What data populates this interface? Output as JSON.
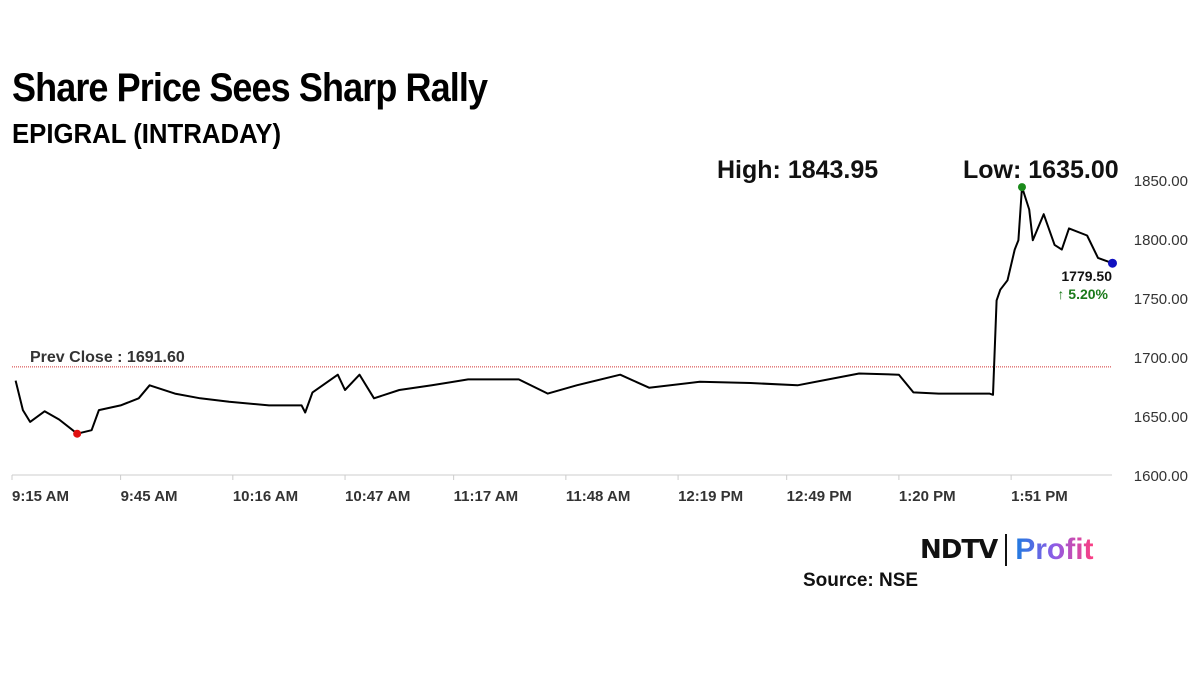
{
  "header": {
    "title": "Share Price Sees Sharp Rally",
    "subtitle": "EPIGRAL (INTRADAY)",
    "high_label": "High: 1843.95",
    "low_label": "Low: 1635.00"
  },
  "footer": {
    "source": "Source: NSE",
    "logo_left": "NDTV",
    "logo_right": "Profit"
  },
  "chart_data": {
    "type": "line",
    "title": "Share Price Sees Sharp Rally",
    "subtitle": "EPIGRAL (INTRADAY)",
    "ylim": [
      1600,
      1850
    ],
    "yticks": [
      "1600.00",
      "1650.00",
      "1700.00",
      "1750.00",
      "1800.00",
      "1850.00"
    ],
    "xticks": [
      "9:15 AM",
      "9:45 AM",
      "10:16 AM",
      "10:47 AM",
      "11:17 AM",
      "11:48 AM",
      "12:19 PM",
      "12:49 PM",
      "1:20 PM",
      "1:51 PM"
    ],
    "xtick_times": [
      "9:15",
      "9:45",
      "10:16",
      "10:47",
      "11:17",
      "11:48",
      "12:19",
      "12:49",
      "13:20",
      "13:51"
    ],
    "prev_close": 1691.6,
    "prev_close_label": "Prev Close : 1691.60",
    "last_price": "1779.50",
    "change_label": "↑ 5.20%",
    "colors": {
      "line": "#000000",
      "prev_close": "#d33333",
      "high_marker": "#1a8a1a",
      "low_marker": "#e01010",
      "last_marker": "#1010c0",
      "change": "#1a7a1a"
    },
    "series": [
      {
        "points": [
          [
            "9:16",
            1680
          ],
          [
            "9:18",
            1655
          ],
          [
            "9:20",
            1645
          ],
          [
            "9:24",
            1654
          ],
          [
            "9:28",
            1647
          ],
          [
            "9:33",
            1635
          ],
          [
            "9:37",
            1638
          ],
          [
            "9:39",
            1655
          ],
          [
            "9:45",
            1659
          ],
          [
            "9:50",
            1665
          ],
          [
            "9:53",
            1676
          ],
          [
            "10:00",
            1669
          ],
          [
            "10:07",
            1665
          ],
          [
            "10:15",
            1662
          ],
          [
            "10:26",
            1659
          ],
          [
            "10:35",
            1659
          ],
          [
            "10:36",
            1653
          ],
          [
            "10:38",
            1670
          ],
          [
            "10:45",
            1685
          ],
          [
            "10:47",
            1672
          ],
          [
            "10:51",
            1685
          ],
          [
            "10:55",
            1665
          ],
          [
            "11:02",
            1672
          ],
          [
            "11:11",
            1676
          ],
          [
            "11:21",
            1681
          ],
          [
            "11:35",
            1681
          ],
          [
            "11:43",
            1669
          ],
          [
            "11:51",
            1676
          ],
          [
            "12:03",
            1685
          ],
          [
            "12:11",
            1674
          ],
          [
            "12:25",
            1679
          ],
          [
            "12:39",
            1678
          ],
          [
            "12:52",
            1676
          ],
          [
            "13:09",
            1686
          ],
          [
            "13:20",
            1685
          ],
          [
            "13:24",
            1670
          ],
          [
            "13:31",
            1669
          ],
          [
            "13:45",
            1669
          ],
          [
            "13:46",
            1668
          ],
          [
            "13:47",
            1748
          ],
          [
            "13:48",
            1757
          ],
          [
            "13:50",
            1765
          ],
          [
            "13:52",
            1791
          ],
          [
            "13:53",
            1799
          ],
          [
            "13:54",
            1843.95
          ],
          [
            "13:56",
            1825
          ],
          [
            "13:57",
            1799
          ],
          [
            "14:00",
            1821
          ],
          [
            "14:03",
            1795
          ],
          [
            "14:05",
            1791
          ],
          [
            "14:07",
            1809
          ],
          [
            "14:12",
            1803
          ],
          [
            "14:15",
            1784
          ],
          [
            "14:19",
            1779.5
          ]
        ]
      }
    ],
    "high": {
      "time": "13:54",
      "value": 1843.95
    },
    "low": {
      "time": "9:33",
      "value": 1635.0
    }
  }
}
